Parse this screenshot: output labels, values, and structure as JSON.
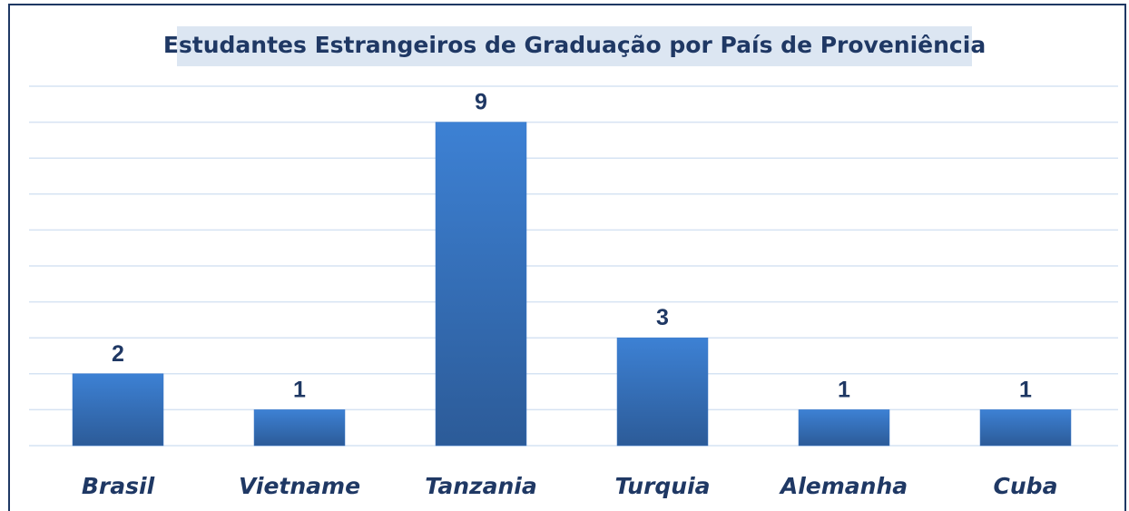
{
  "chart_data": {
    "type": "bar",
    "title": "Estudantes Estrangeiros de Graduação por País de Proveniência",
    "categories": [
      "Brasil",
      "Vietname",
      "Tanzania",
      "Turquia",
      "Alemanha",
      "Cuba"
    ],
    "values": [
      2,
      1,
      9,
      3,
      1,
      1
    ],
    "color": "#3a78c8",
    "ylim": [
      0,
      10
    ],
    "yticks": [
      0,
      1,
      2,
      3,
      4,
      5,
      6,
      7,
      8,
      9,
      10
    ],
    "grid": true
  }
}
